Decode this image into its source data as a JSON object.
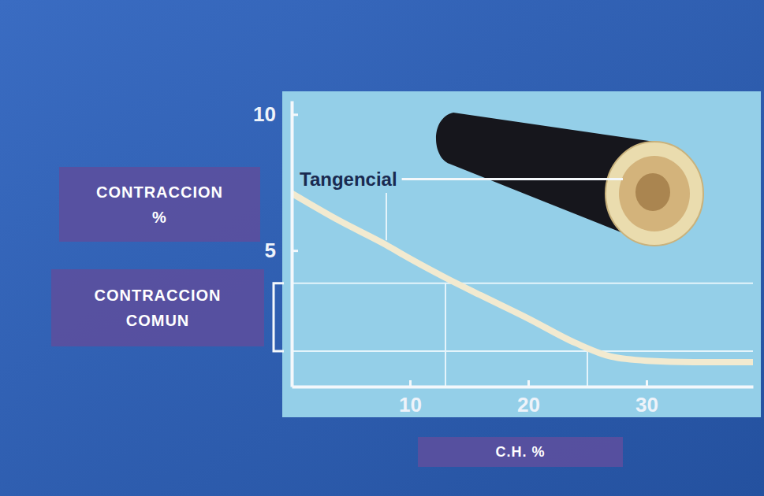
{
  "chart_data": {
    "type": "line",
    "x_label": "C.H. %",
    "y_label": "CONTRACCION %",
    "x": [
      0,
      4,
      8,
      10,
      13,
      16,
      20,
      24,
      27,
      30,
      34,
      39
    ],
    "series": [
      {
        "name": "Tangencial",
        "color": "#f2ead0",
        "values": [
          7.1,
          6.1,
          5.2,
          4.7,
          4.0,
          3.35,
          2.5,
          1.6,
          1.1,
          0.95,
          0.9,
          0.9
        ]
      }
    ],
    "xlim": [
      0,
      39
    ],
    "ylim": [
      0,
      10.5
    ],
    "xticks": [
      10,
      20,
      30
    ],
    "yticks": [
      5,
      10
    ],
    "common_range": {
      "label": "CONTRACCION COMUN",
      "x": [
        13,
        25
      ],
      "y": [
        1.3,
        3.8
      ]
    }
  }
}
